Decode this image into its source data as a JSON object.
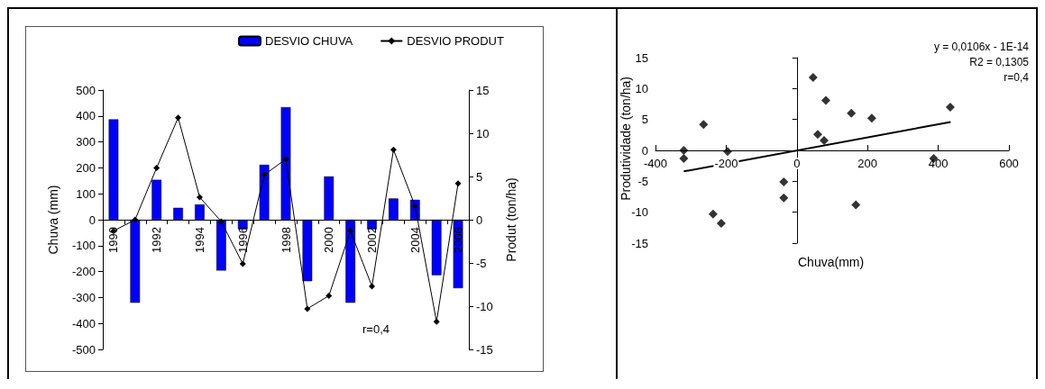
{
  "chart_data": [
    {
      "type": "bar",
      "categories": [
        "1990",
        null,
        "1992",
        null,
        "1994",
        null,
        "1996",
        null,
        "1998",
        null,
        "2000",
        null,
        "2002",
        null,
        "2004",
        null,
        "2006"
      ],
      "series": [
        {
          "name": "DESVIO CHUVA",
          "type": "bar",
          "color": "#0000ff",
          "values": [
            387,
            -320,
            154,
            46,
            59,
            -196,
            -37,
            212,
            434,
            -237,
            167,
            -320,
            -37,
            82,
            77,
            -214,
            -264
          ]
        },
        {
          "name": "DESVIO PRODUT",
          "type": "line",
          "axis": "y2",
          "color": "#000000",
          "values": [
            -1.3,
            0,
            6.0,
            11.8,
            2.6,
            -0.2,
            -5.1,
            5.2,
            7.0,
            -10.3,
            -8.8,
            -1.3,
            -7.7,
            8.1,
            1.6,
            -11.8,
            4.2
          ]
        }
      ],
      "ylabel": "Chuva (mm)",
      "y2label": "Produt (ton/ha)",
      "ylim": [
        -500,
        500
      ],
      "yticks": [
        -500,
        -400,
        -300,
        -200,
        -100,
        0,
        100,
        200,
        300,
        400,
        500
      ],
      "y2lim": [
        -15,
        15
      ],
      "y2ticks": [
        -15,
        -10,
        -5,
        0,
        5,
        10,
        15
      ],
      "marker": "diamond",
      "legend": "top",
      "annotations": [
        "r=0,4"
      ]
    },
    {
      "type": "scatter",
      "series": [
        {
          "type": "scatter",
          "marker": "diamond",
          "color": "#000000",
          "x": [
            387,
            -320,
            154,
            46,
            59,
            -196,
            -37,
            212,
            434,
            -237,
            167,
            -320,
            -37,
            82,
            77,
            -214,
            -264
          ],
          "values": [
            -1.3,
            0,
            6.0,
            11.8,
            2.6,
            -0.2,
            -5.1,
            5.2,
            7.0,
            -10.3,
            -8.8,
            -1.3,
            -7.7,
            8.1,
            1.6,
            -11.8,
            4.2
          ]
        },
        {
          "type": "line",
          "marker": "none",
          "color": "#000000",
          "x": [
            -320,
            435
          ],
          "values": [
            -3.4,
            4.6
          ]
        }
      ],
      "xlabel": "Chuva(mm)",
      "ylabel": "Produtividade (ton/ha)",
      "xlim": [
        -400,
        600
      ],
      "xticks": [
        -400,
        -200,
        0,
        200,
        400,
        600
      ],
      "ylim": [
        -15,
        15
      ],
      "yticks": [
        -15,
        -10,
        -5,
        0,
        5,
        10,
        15
      ],
      "annotations": [
        "y = 0,0106x - 1E-14",
        "R2 = 0,1305",
        "r=0,4"
      ]
    }
  ]
}
